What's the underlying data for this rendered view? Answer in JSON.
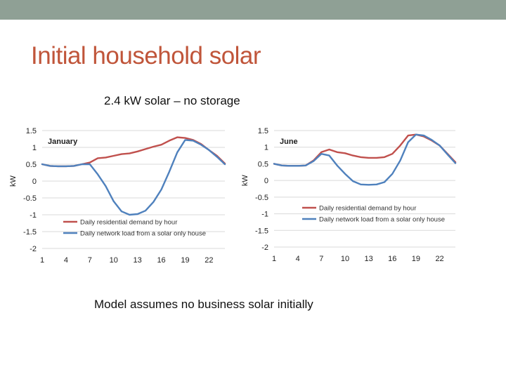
{
  "slide": {
    "title": "Initial household solar",
    "subtitle": "2.4 kW solar – no storage",
    "footnote": "Model assumes no business solar initially"
  },
  "colors": {
    "topbar": "#8fa095",
    "title": "#c0553a",
    "demand": "#c0504d",
    "network": "#4f81bd",
    "grid": "#d9d9d9"
  },
  "chart_data": [
    {
      "type": "line",
      "title": "January",
      "ylabel": "kW",
      "xlabel": "",
      "ylim": [
        -2,
        1.5
      ],
      "yticks": [
        1.5,
        1,
        0.5,
        0,
        -0.5,
        -1,
        -1.5,
        -2
      ],
      "ytick_labels": [
        "1.5",
        "1",
        "0.5",
        "0",
        "-0.5",
        "-1",
        "-1.5",
        "-2"
      ],
      "xticks": [
        1,
        4,
        7,
        10,
        13,
        16,
        19,
        22
      ],
      "xtick_labels": [
        "1",
        "4",
        "7",
        "10",
        "13",
        "16",
        "19",
        "22"
      ],
      "x": [
        1,
        2,
        3,
        4,
        5,
        6,
        7,
        8,
        9,
        10,
        11,
        12,
        13,
        14,
        15,
        16,
        17,
        18,
        19,
        20,
        21,
        22,
        23,
        24
      ],
      "legend_position": "bottom-left",
      "series": [
        {
          "name": "Daily residential demand by hour",
          "color": "#c0504d",
          "values": [
            0.5,
            0.45,
            0.44,
            0.44,
            0.45,
            0.5,
            0.55,
            0.68,
            0.7,
            0.75,
            0.8,
            0.82,
            0.88,
            0.95,
            1.02,
            1.08,
            1.2,
            1.3,
            1.28,
            1.22,
            1.1,
            0.92,
            0.75,
            0.52
          ]
        },
        {
          "name": "Daily network load from a solar only house",
          "color": "#4f81bd",
          "values": [
            0.5,
            0.45,
            0.44,
            0.44,
            0.45,
            0.5,
            0.5,
            0.2,
            -0.15,
            -0.6,
            -0.9,
            -1.0,
            -0.98,
            -0.88,
            -0.62,
            -0.25,
            0.28,
            0.85,
            1.22,
            1.2,
            1.08,
            0.92,
            0.72,
            0.5
          ]
        }
      ]
    },
    {
      "type": "line",
      "title": "June",
      "ylabel": "kW",
      "xlabel": "",
      "ylim": [
        -2,
        1.5
      ],
      "yticks": [
        1.5,
        1,
        0.5,
        0,
        -0.5,
        -1,
        -1.5,
        -2
      ],
      "ytick_labels": [
        "1.5",
        "1",
        "0.5",
        "0",
        "-0.5",
        "-1",
        "-1.5",
        "-2"
      ],
      "xticks": [
        1,
        4,
        7,
        10,
        13,
        16,
        19,
        22
      ],
      "xtick_labels": [
        "1",
        "4",
        "7",
        "10",
        "13",
        "16",
        "19",
        "22"
      ],
      "x": [
        1,
        2,
        3,
        4,
        5,
        6,
        7,
        8,
        9,
        10,
        11,
        12,
        13,
        14,
        15,
        16,
        17,
        18,
        19,
        20,
        21,
        22,
        23,
        24
      ],
      "legend_position": "bottom-right",
      "series": [
        {
          "name": "Daily residential demand by hour",
          "color": "#c0504d",
          "values": [
            0.5,
            0.45,
            0.44,
            0.44,
            0.45,
            0.6,
            0.85,
            0.93,
            0.85,
            0.82,
            0.75,
            0.7,
            0.68,
            0.68,
            0.7,
            0.8,
            1.05,
            1.35,
            1.38,
            1.32,
            1.2,
            1.05,
            0.8,
            0.55
          ]
        },
        {
          "name": "Daily network load from a solar only house",
          "color": "#4f81bd",
          "values": [
            0.5,
            0.45,
            0.44,
            0.44,
            0.45,
            0.58,
            0.8,
            0.75,
            0.45,
            0.2,
            -0.02,
            -0.12,
            -0.13,
            -0.12,
            -0.05,
            0.2,
            0.6,
            1.15,
            1.38,
            1.35,
            1.22,
            1.05,
            0.78,
            0.52
          ]
        }
      ]
    }
  ]
}
